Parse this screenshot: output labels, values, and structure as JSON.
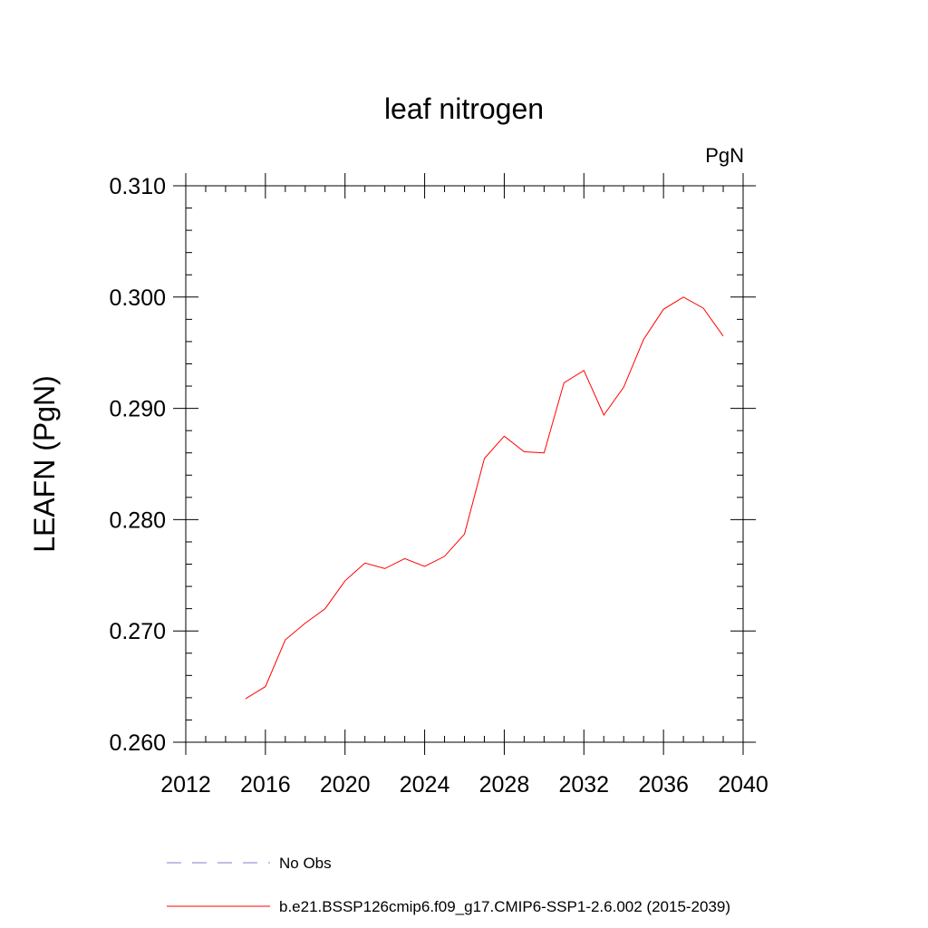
{
  "chart_data": {
    "type": "line",
    "title": "leaf nitrogen",
    "units_label": "PgN",
    "ylabel": "LEAFN  (PgN)",
    "xlabel": "",
    "xlim": [
      2012,
      2040
    ],
    "ylim": [
      0.26,
      0.31
    ],
    "x_ticks": [
      2012,
      2016,
      2020,
      2024,
      2028,
      2032,
      2036,
      2040
    ],
    "x_tick_labels": [
      "2012",
      "2016",
      "2020",
      "2024",
      "2028",
      "2032",
      "2036",
      "2040"
    ],
    "y_ticks": [
      0.26,
      0.27,
      0.28,
      0.29,
      0.3,
      0.31
    ],
    "y_tick_labels": [
      "0.260",
      "0.270",
      "0.280",
      "0.290",
      "0.300",
      "0.310"
    ],
    "grid": false,
    "legend_position": "bottom",
    "series": [
      {
        "name": "b.e21.BSSP126cmip6.f09_g17.CMIP6-SSP1-2.6.002 (2015-2039)",
        "color": "#ff0000",
        "style": "solid",
        "x": [
          2015,
          2016,
          2017,
          2018,
          2019,
          2020,
          2021,
          2022,
          2023,
          2024,
          2025,
          2026,
          2027,
          2028,
          2029,
          2030,
          2031,
          2032,
          2033,
          2034,
          2035,
          2036,
          2037,
          2038,
          2039
        ],
        "y": [
          0.2639,
          0.265,
          0.2692,
          0.2707,
          0.272,
          0.2745,
          0.2761,
          0.2756,
          0.2765,
          0.2758,
          0.2767,
          0.2787,
          0.2855,
          0.2875,
          0.2861,
          0.286,
          0.2923,
          0.2934,
          0.2894,
          0.2919,
          0.2962,
          0.2989,
          0.3,
          0.299,
          0.2965
        ]
      },
      {
        "name": "No Obs",
        "color": "#7f7fd0",
        "style": "dashed",
        "x": [],
        "y": []
      }
    ]
  }
}
